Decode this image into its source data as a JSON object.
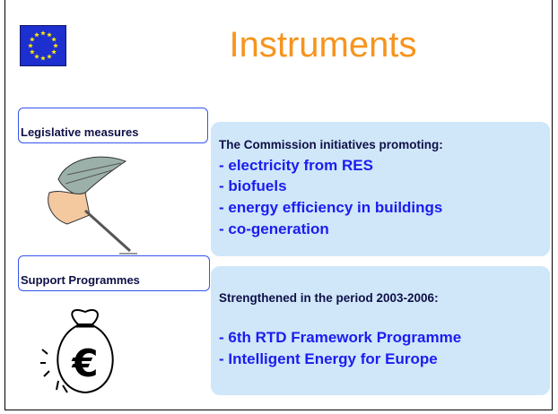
{
  "slide": {
    "title": "Instruments",
    "sections": [
      {
        "label": "Legislative measures",
        "heading": "The Commission initiatives promoting:",
        "items": [
          "- electricity from RES",
          "- biofuels",
          "- energy efficiency in buildings",
          "- co-generation"
        ]
      },
      {
        "label": "Support Programmes",
        "heading": "Strengthened in the period 2003-2006:",
        "items": [
          "- 6th RTD Framework Programme",
          "- Intelligent Energy for Europe"
        ],
        "icon": "€"
      }
    ]
  }
}
